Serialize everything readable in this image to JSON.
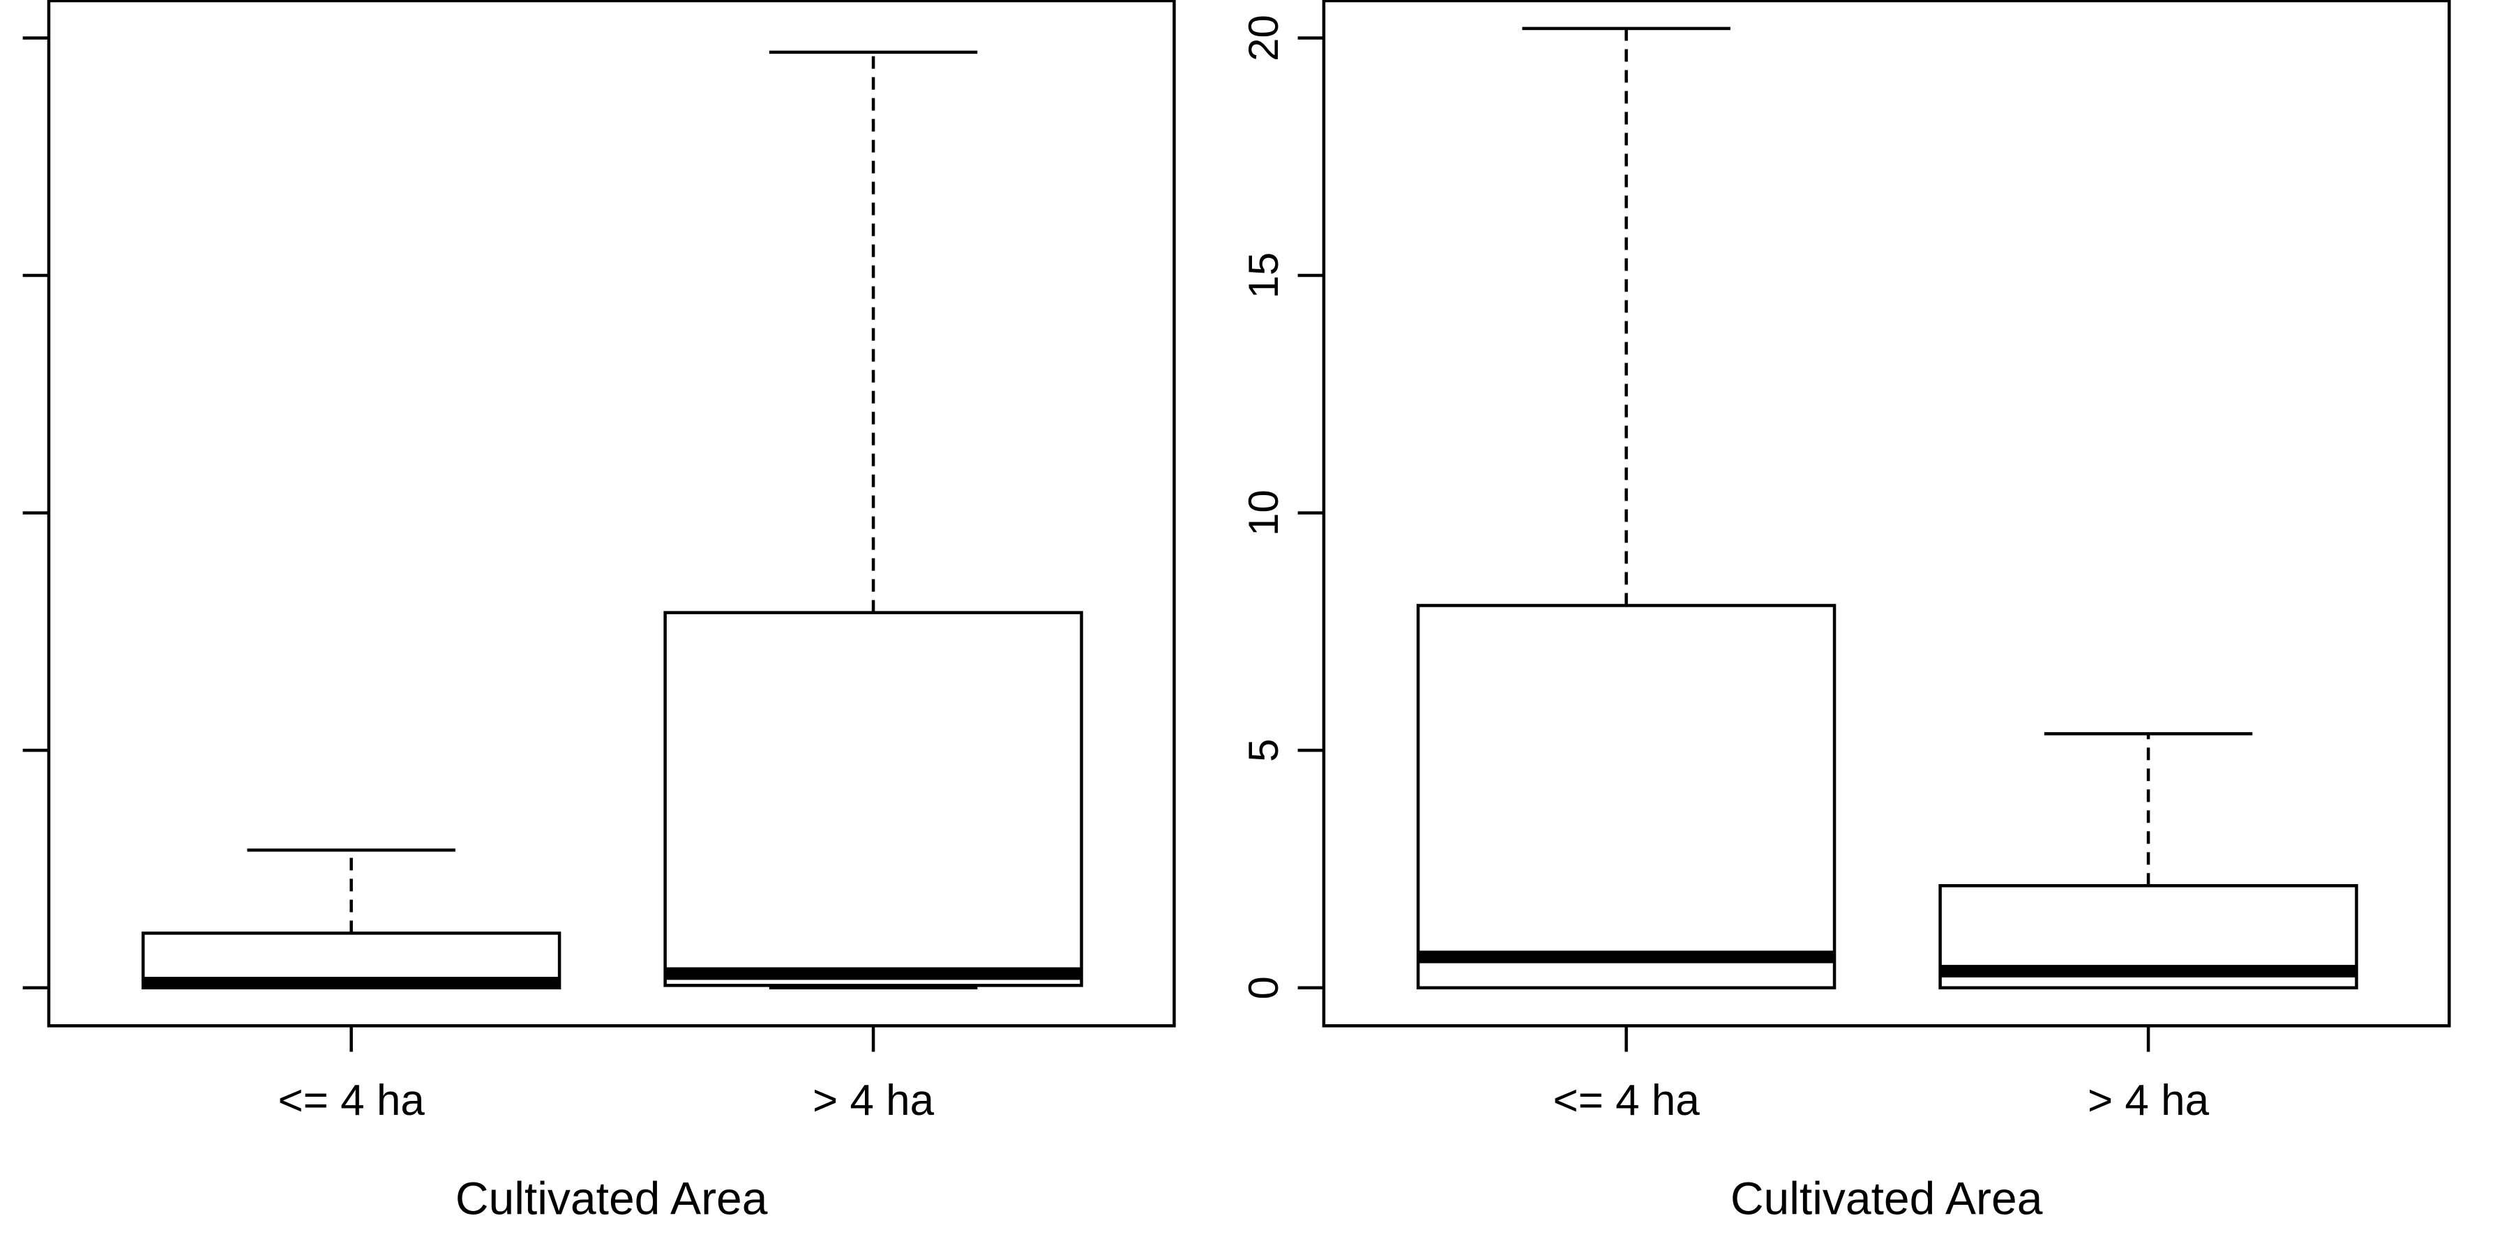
{
  "chart_data": [
    {
      "type": "box",
      "xlabel": "Cultivated Area",
      "ylabel": "",
      "categories": [
        "<= 4 ha",
        "> 4 ha"
      ],
      "ylim": [
        -0.8,
        20.8
      ],
      "yticks": [
        0,
        5,
        10,
        15,
        20
      ],
      "ytick_labels": [],
      "boxes": [
        {
          "lower_whisker": 0.0,
          "q1": 0.0,
          "median": 0.1,
          "q3": 1.15,
          "upper_whisker": 2.9
        },
        {
          "lower_whisker": 0.0,
          "q1": 0.05,
          "median": 0.3,
          "q3": 7.9,
          "upper_whisker": 19.7
        }
      ]
    },
    {
      "type": "box",
      "xlabel": "Cultivated Area",
      "ylabel": "",
      "categories": [
        "<= 4 ha",
        "> 4 ha"
      ],
      "ylim": [
        -0.8,
        20.8
      ],
      "yticks": [
        0,
        5,
        10,
        15,
        20
      ],
      "ytick_labels": [
        "0",
        "5",
        "10",
        "15",
        "20"
      ],
      "boxes": [
        {
          "lower_whisker": 0.0,
          "q1": 0.0,
          "median": 0.65,
          "q3": 8.05,
          "upper_whisker": 20.2
        },
        {
          "lower_whisker": 0.0,
          "q1": 0.0,
          "median": 0.35,
          "q3": 2.15,
          "upper_whisker": 5.35
        }
      ]
    }
  ]
}
